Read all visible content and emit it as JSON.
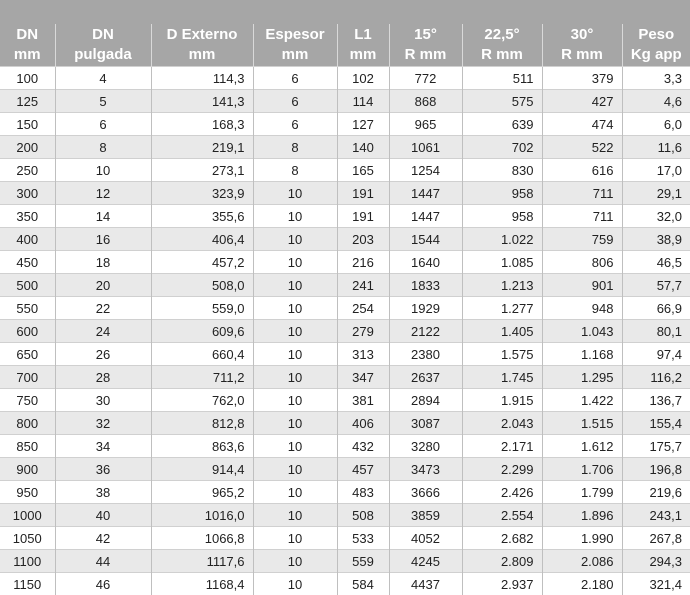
{
  "headers": [
    [
      "DN",
      "mm"
    ],
    [
      "DN",
      "pulgada"
    ],
    [
      "D Externo",
      "mm"
    ],
    [
      "Espesor",
      "mm"
    ],
    [
      "L1",
      "mm"
    ],
    [
      "15°",
      "R  mm"
    ],
    [
      "22,5°",
      "R mm"
    ],
    [
      "30°",
      "R mm"
    ],
    [
      "Peso",
      "Kg app"
    ]
  ],
  "rows": [
    [
      "100",
      "4",
      "114,3",
      "6",
      "102",
      "772",
      "511",
      "379",
      "3,3"
    ],
    [
      "125",
      "5",
      "141,3",
      "6",
      "114",
      "868",
      "575",
      "427",
      "4,6"
    ],
    [
      "150",
      "6",
      "168,3",
      "6",
      "127",
      "965",
      "639",
      "474",
      "6,0"
    ],
    [
      "200",
      "8",
      "219,1",
      "8",
      "140",
      "1061",
      "702",
      "522",
      "11,6"
    ],
    [
      "250",
      "10",
      "273,1",
      "8",
      "165",
      "1254",
      "830",
      "616",
      "17,0"
    ],
    [
      "300",
      "12",
      "323,9",
      "10",
      "191",
      "1447",
      "958",
      "711",
      "29,1"
    ],
    [
      "350",
      "14",
      "355,6",
      "10",
      "191",
      "1447",
      "958",
      "711",
      "32,0"
    ],
    [
      "400",
      "16",
      "406,4",
      "10",
      "203",
      "1544",
      "1.022",
      "759",
      "38,9"
    ],
    [
      "450",
      "18",
      "457,2",
      "10",
      "216",
      "1640",
      "1.085",
      "806",
      "46,5"
    ],
    [
      "500",
      "20",
      "508,0",
      "10",
      "241",
      "1833",
      "1.213",
      "901",
      "57,7"
    ],
    [
      "550",
      "22",
      "559,0",
      "10",
      "254",
      "1929",
      "1.277",
      "948",
      "66,9"
    ],
    [
      "600",
      "24",
      "609,6",
      "10",
      "279",
      "2122",
      "1.405",
      "1.043",
      "80,1"
    ],
    [
      "650",
      "26",
      "660,4",
      "10",
      "313",
      "2380",
      "1.575",
      "1.168",
      "97,4"
    ],
    [
      "700",
      "28",
      "711,2",
      "10",
      "347",
      "2637",
      "1.745",
      "1.295",
      "116,2"
    ],
    [
      "750",
      "30",
      "762,0",
      "10",
      "381",
      "2894",
      "1.915",
      "1.422",
      "136,7"
    ],
    [
      "800",
      "32",
      "812,8",
      "10",
      "406",
      "3087",
      "2.043",
      "1.515",
      "155,4"
    ],
    [
      "850",
      "34",
      "863,6",
      "10",
      "432",
      "3280",
      "2.171",
      "1.612",
      "175,7"
    ],
    [
      "900",
      "36",
      "914,4",
      "10",
      "457",
      "3473",
      "2.299",
      "1.706",
      "196,8"
    ],
    [
      "950",
      "38",
      "965,2",
      "10",
      "483",
      "3666",
      "2.426",
      "1.799",
      "219,6"
    ],
    [
      "1000",
      "40",
      "1016,0",
      "10",
      "508",
      "3859",
      "2.554",
      "1.896",
      "243,1"
    ],
    [
      "1050",
      "42",
      "1066,8",
      "10",
      "533",
      "4052",
      "2.682",
      "1.990",
      "267,8"
    ],
    [
      "1100",
      "44",
      "1117,6",
      "10",
      "559",
      "4245",
      "2.809",
      "2.086",
      "294,3"
    ],
    [
      "1150",
      "46",
      "1168,4",
      "10",
      "584",
      "4437",
      "2.937",
      "2.180",
      "321,4"
    ]
  ],
  "colors": {
    "header_bg": "#a6a6a6",
    "header_text": "#ffffff",
    "row_alt_bg": "#e9e9e9"
  }
}
